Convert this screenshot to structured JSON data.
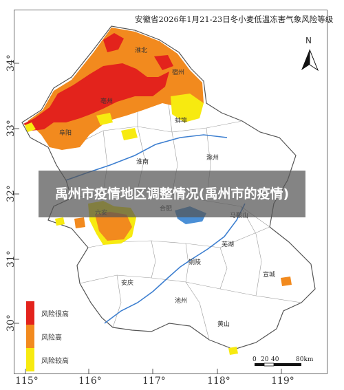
{
  "map": {
    "title": "安徽省2026年1月21-23日冬小麦低温冻害气象风险等级",
    "north_label": "N",
    "latitudes": [
      "34°",
      "33°",
      "32°",
      "31°",
      "30°"
    ],
    "longitudes": [
      "115°",
      "116°",
      "117°",
      "118°",
      "119°"
    ],
    "cities": [
      "宿州",
      "蚌埠",
      "阜阳",
      "淮南",
      "滁州",
      "六安",
      "合肥",
      "马鞍山",
      "芜湖",
      "铜陵",
      "宣城",
      "安庆",
      "池州",
      "黄山",
      "淮北",
      "亳州"
    ],
    "legend": [
      {
        "label": "风险很高",
        "color": "#e3231c"
      },
      {
        "label": "风险高",
        "color": "#f28a1e"
      },
      {
        "label": "风险较高",
        "color": "#f7ea10"
      }
    ],
    "scale": {
      "ticks": [
        "0",
        "20",
        "40",
        "80km"
      ]
    }
  },
  "overlay": {
    "headline": "禹州市疫情地区调整情况(禹州市的疫情)"
  },
  "colors": {
    "very_high": "#e3231c",
    "high": "#f28a1e",
    "elevated": "#f7ea10",
    "water": "#4a8fd6",
    "border": "#777777"
  }
}
